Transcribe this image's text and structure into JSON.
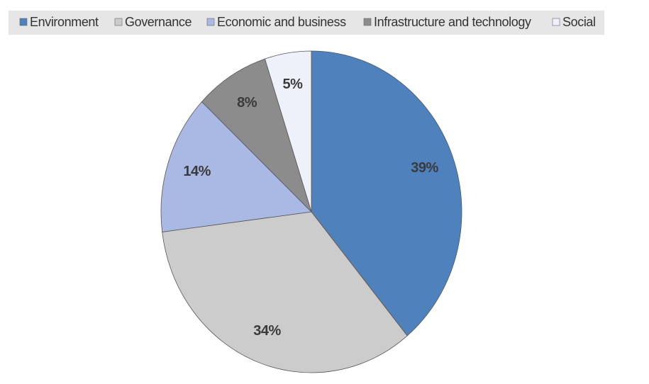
{
  "chart_data": {
    "type": "pie",
    "categories": [
      "Environment",
      "Governance",
      "Economic and business",
      "Infrastructure and technology",
      "Social"
    ],
    "values": [
      39,
      34,
      14,
      8,
      5
    ],
    "value_labels": [
      "39%",
      "34%",
      "14%",
      "8%",
      "5%"
    ],
    "colors": [
      "#4f81bd",
      "#cccccc",
      "#a9b9e3",
      "#8c8c8c",
      "#eef1f9"
    ],
    "legend": "top"
  }
}
